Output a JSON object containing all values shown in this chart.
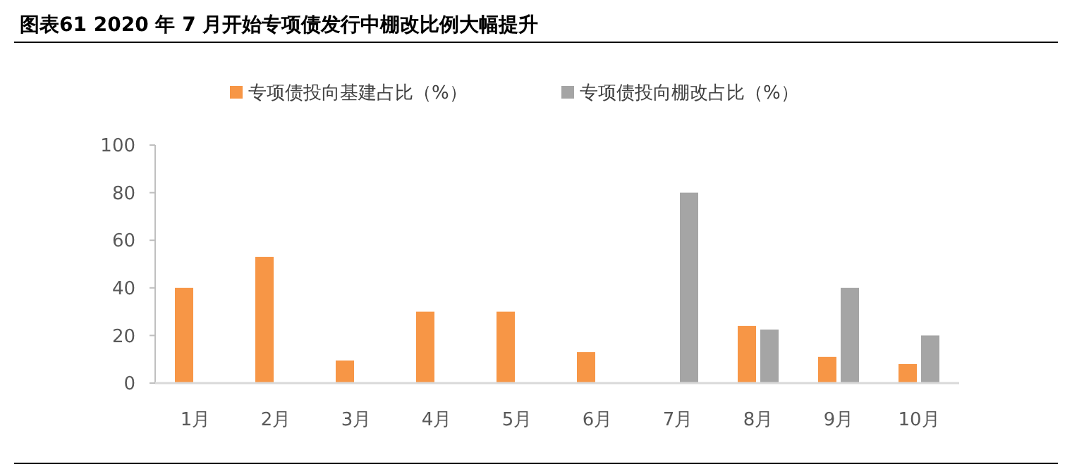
{
  "chart_data": {
    "type": "bar",
    "title": "图表61    2020 年 7 月开始专项债发行中棚改比例大幅提升",
    "categories": [
      "1月",
      "2月",
      "3月",
      "4月",
      "5月",
      "6月",
      "7月",
      "8月",
      "9月",
      "10月"
    ],
    "series": [
      {
        "name": "专项债投向基建占比（%）",
        "color": "#f79646",
        "values": [
          40,
          53,
          9.5,
          30,
          30,
          13,
          null,
          24,
          11,
          8
        ]
      },
      {
        "name": "专项债投向棚改占比（%）",
        "color": "#a5a5a5",
        "values": [
          null,
          null,
          null,
          null,
          null,
          null,
          80,
          22.5,
          40,
          20
        ]
      }
    ],
    "ylim": [
      0,
      100
    ],
    "yticks": [
      0,
      20,
      40,
      60,
      80,
      100
    ],
    "grid": false,
    "legend": "top"
  }
}
